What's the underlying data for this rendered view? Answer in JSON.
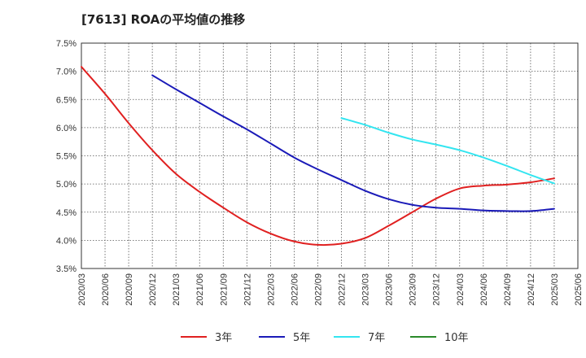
{
  "title": "[7613]  ROAの平均値の推移",
  "chart_data": {
    "type": "line",
    "title": "[7613]  ROAの平均値の推移",
    "xlabel": "",
    "ylabel": "",
    "ylim": [
      3.5,
      7.5
    ],
    "y_ticks": [
      3.5,
      4.0,
      4.5,
      5.0,
      5.5,
      6.0,
      6.5,
      7.0,
      7.5
    ],
    "y_tick_labels": [
      "3.5%",
      "4.0%",
      "4.5%",
      "5.0%",
      "5.5%",
      "6.0%",
      "6.5%",
      "7.0%",
      "7.5%"
    ],
    "x_tick_labels": [
      "2020/03",
      "2020/06",
      "2020/09",
      "2020/12",
      "2021/03",
      "2021/06",
      "2021/09",
      "2021/12",
      "2022/03",
      "2022/06",
      "2022/09",
      "2022/12",
      "2023/03",
      "2023/06",
      "2023/09",
      "2023/12",
      "2024/03",
      "2024/06",
      "2024/09",
      "2024/12",
      "2025/03",
      "2025/06"
    ],
    "grid": true,
    "legend_position": "bottom",
    "series": [
      {
        "name": "3年",
        "color": "#e02020",
        "x": [
          "2020/03",
          "2020/06",
          "2020/09",
          "2020/12",
          "2021/03",
          "2021/06",
          "2021/09",
          "2021/12",
          "2022/03",
          "2022/06",
          "2022/09",
          "2022/12",
          "2023/03",
          "2023/06",
          "2023/09",
          "2023/12",
          "2024/03",
          "2024/06",
          "2024/09",
          "2024/12",
          "2025/03"
        ],
        "values": [
          7.08,
          6.6,
          6.08,
          5.6,
          5.18,
          4.86,
          4.58,
          4.32,
          4.12,
          3.98,
          3.92,
          3.94,
          4.04,
          4.26,
          4.5,
          4.74,
          4.92,
          4.97,
          4.99,
          5.03,
          5.1
        ]
      },
      {
        "name": "5年",
        "color": "#1a1ab8",
        "x": [
          "2020/12",
          "2021/03",
          "2021/06",
          "2021/09",
          "2021/12",
          "2022/03",
          "2022/06",
          "2022/09",
          "2022/12",
          "2023/03",
          "2023/06",
          "2023/09",
          "2023/12",
          "2024/03",
          "2024/06",
          "2024/09",
          "2024/12",
          "2025/03"
        ],
        "values": [
          6.93,
          6.68,
          6.44,
          6.2,
          5.97,
          5.72,
          5.47,
          5.26,
          5.07,
          4.88,
          4.73,
          4.63,
          4.58,
          4.56,
          4.53,
          4.52,
          4.52,
          4.56
        ]
      },
      {
        "name": "7年",
        "color": "#33e5f0",
        "x": [
          "2022/12",
          "2023/03",
          "2023/06",
          "2023/09",
          "2023/12",
          "2024/03",
          "2024/06",
          "2024/09",
          "2024/12",
          "2025/03"
        ],
        "values": [
          6.17,
          6.05,
          5.91,
          5.79,
          5.7,
          5.6,
          5.47,
          5.32,
          5.16,
          5.01
        ]
      },
      {
        "name": "10年",
        "color": "#2a8a2a",
        "x": [],
        "values": []
      }
    ]
  }
}
